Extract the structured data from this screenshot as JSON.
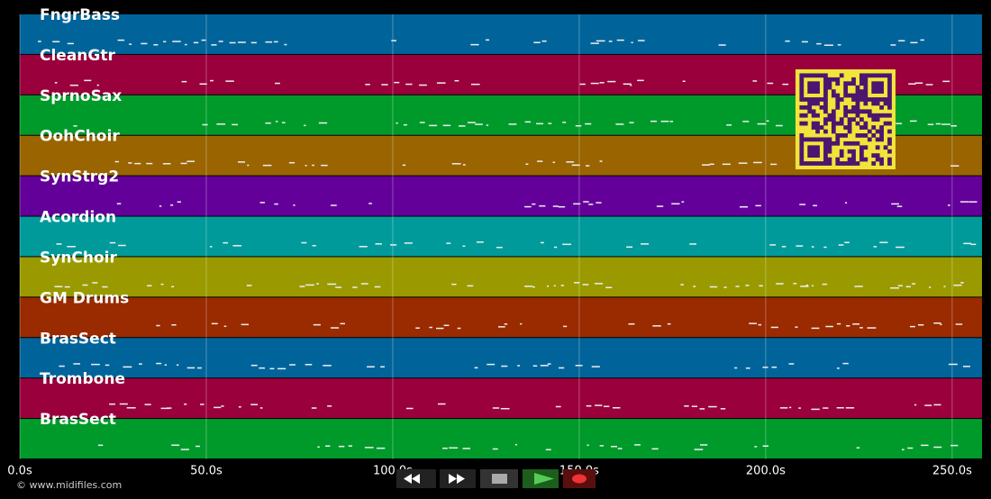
{
  "tracks": [
    {
      "name": "FngrBass",
      "color": "#00649a"
    },
    {
      "name": "CleanGtr",
      "color": "#9a003c"
    },
    {
      "name": "SprnoSax",
      "color": "#009a2a"
    },
    {
      "name": "OohChoir",
      "color": "#9a6400"
    },
    {
      "name": "SynStrg2",
      "color": "#64009a"
    },
    {
      "name": "Acordion",
      "color": "#009a9a"
    },
    {
      "name": "SynChoir",
      "color": "#9a9a00"
    },
    {
      "name": "GM Drums",
      "color": "#9a2a00"
    },
    {
      "name": "BrasSect",
      "color": "#00649a"
    },
    {
      "name": "Trombone",
      "color": "#9a003c"
    },
    {
      "name": "BrasSect",
      "color": "#009a2a"
    }
  ],
  "timeline": {
    "xlim": [
      0,
      258
    ],
    "ticks": [
      {
        "value": 0,
        "label": "0.0s"
      },
      {
        "value": 50,
        "label": "50.0s"
      },
      {
        "value": 100,
        "label": "100.0s"
      },
      {
        "value": 150,
        "label": "150.0s"
      },
      {
        "value": 200,
        "label": "200.0s"
      },
      {
        "value": 250,
        "label": "250.0s"
      }
    ]
  },
  "footer": "© www.midifiles.com"
}
